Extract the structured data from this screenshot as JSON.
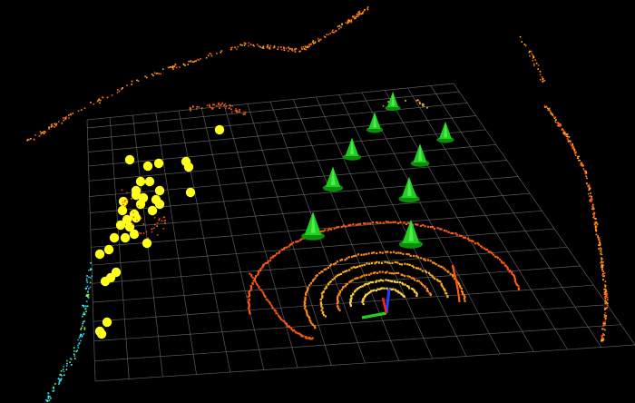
{
  "viewer": {
    "background": "#000000",
    "grid_color": "#6b6b6b",
    "cone_color": "#1fd11f",
    "cone_base_color": "#0b8f0b",
    "track_color": "#ffff1a",
    "scan_colors": [
      "#ff5a14",
      "#ff8a1a",
      "#ffb020",
      "#ffd23a"
    ],
    "axis_colors": {
      "x": "#ff2020",
      "y": "#20d020",
      "z": "#2040ff"
    }
  },
  "objects": {
    "cone_count": 10,
    "track_marker_count": 36,
    "icon": "traffic-cone-icon",
    "marker_icon": "track-point-icon"
  }
}
